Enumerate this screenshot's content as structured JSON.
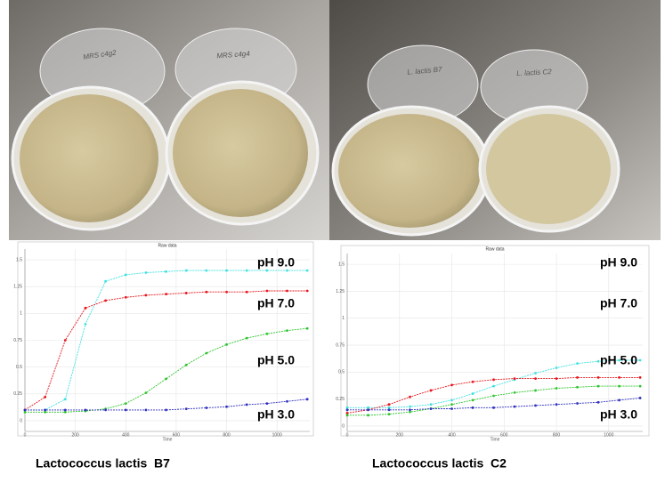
{
  "photos": [
    {
      "dish_labels": [
        "MRS c4g2",
        "MRS c4g4"
      ]
    },
    {
      "dish_labels": [
        "L. lactis B7",
        "L. lactis C2"
      ]
    }
  ],
  "chart_data": [
    {
      "type": "line",
      "title": "Raw data",
      "x_label": "Time",
      "caption": "Lactococcus lactis  B7",
      "x": [
        0,
        80,
        160,
        240,
        320,
        400,
        480,
        560,
        640,
        720,
        800,
        880,
        960,
        1040,
        1120
      ],
      "xlim": [
        0,
        1130
      ],
      "xticks": [
        0,
        200,
        400,
        600,
        800,
        1000
      ],
      "ylim": [
        -0.1,
        1.6
      ],
      "yticks": [
        0,
        0.25,
        0.5,
        0.75,
        1,
        1.25,
        1.5
      ],
      "grid": true,
      "series": [
        {
          "name": "pH 9.0",
          "color": "#40e0e0",
          "values": [
            0.1,
            0.1,
            0.2,
            0.9,
            1.3,
            1.36,
            1.38,
            1.39,
            1.4,
            1.4,
            1.4,
            1.4,
            1.4,
            1.4,
            1.4
          ]
        },
        {
          "name": "pH 7.0",
          "color": "#e8141b",
          "values": [
            0.1,
            0.22,
            0.75,
            1.05,
            1.12,
            1.15,
            1.17,
            1.18,
            1.19,
            1.2,
            1.2,
            1.2,
            1.21,
            1.21,
            1.21
          ]
        },
        {
          "name": "pH 5.0",
          "color": "#2ec42e",
          "values": [
            0.08,
            0.08,
            0.08,
            0.09,
            0.11,
            0.16,
            0.26,
            0.39,
            0.52,
            0.63,
            0.71,
            0.77,
            0.81,
            0.84,
            0.86
          ]
        },
        {
          "name": "pH 3.0",
          "color": "#3030c0",
          "values": [
            0.1,
            0.1,
            0.1,
            0.1,
            0.1,
            0.1,
            0.1,
            0.1,
            0.11,
            0.12,
            0.13,
            0.15,
            0.16,
            0.18,
            0.2
          ]
        }
      ]
    },
    {
      "type": "line",
      "title": "Raw data",
      "x_label": "Time",
      "caption": "Lactococcus lactis  C2",
      "x": [
        0,
        80,
        160,
        240,
        320,
        400,
        480,
        560,
        640,
        720,
        800,
        880,
        960,
        1040,
        1120
      ],
      "xlim": [
        0,
        1130
      ],
      "xticks": [
        0,
        200,
        400,
        600,
        800,
        1000
      ],
      "ylim": [
        -0.05,
        1.6
      ],
      "yticks": [
        0,
        0.25,
        0.5,
        0.75,
        1,
        1.25,
        1.5
      ],
      "grid": true,
      "series": [
        {
          "name": "pH 9.0",
          "color": "#40e0e0",
          "values": [
            0.17,
            0.17,
            0.17,
            0.18,
            0.2,
            0.24,
            0.3,
            0.37,
            0.43,
            0.49,
            0.54,
            0.58,
            0.6,
            0.61,
            0.61
          ]
        },
        {
          "name": "pH 7.0",
          "color": "#e8141b",
          "values": [
            0.12,
            0.15,
            0.2,
            0.27,
            0.33,
            0.38,
            0.41,
            0.43,
            0.44,
            0.44,
            0.44,
            0.45,
            0.45,
            0.45,
            0.45
          ]
        },
        {
          "name": "pH 5.0",
          "color": "#2ec42e",
          "values": [
            0.1,
            0.1,
            0.11,
            0.13,
            0.16,
            0.2,
            0.24,
            0.28,
            0.31,
            0.33,
            0.35,
            0.36,
            0.37,
            0.37,
            0.37
          ]
        },
        {
          "name": "pH 3.0",
          "color": "#3030c0",
          "values": [
            0.15,
            0.15,
            0.15,
            0.15,
            0.16,
            0.16,
            0.17,
            0.17,
            0.18,
            0.19,
            0.2,
            0.21,
            0.22,
            0.24,
            0.26
          ]
        }
      ]
    }
  ]
}
